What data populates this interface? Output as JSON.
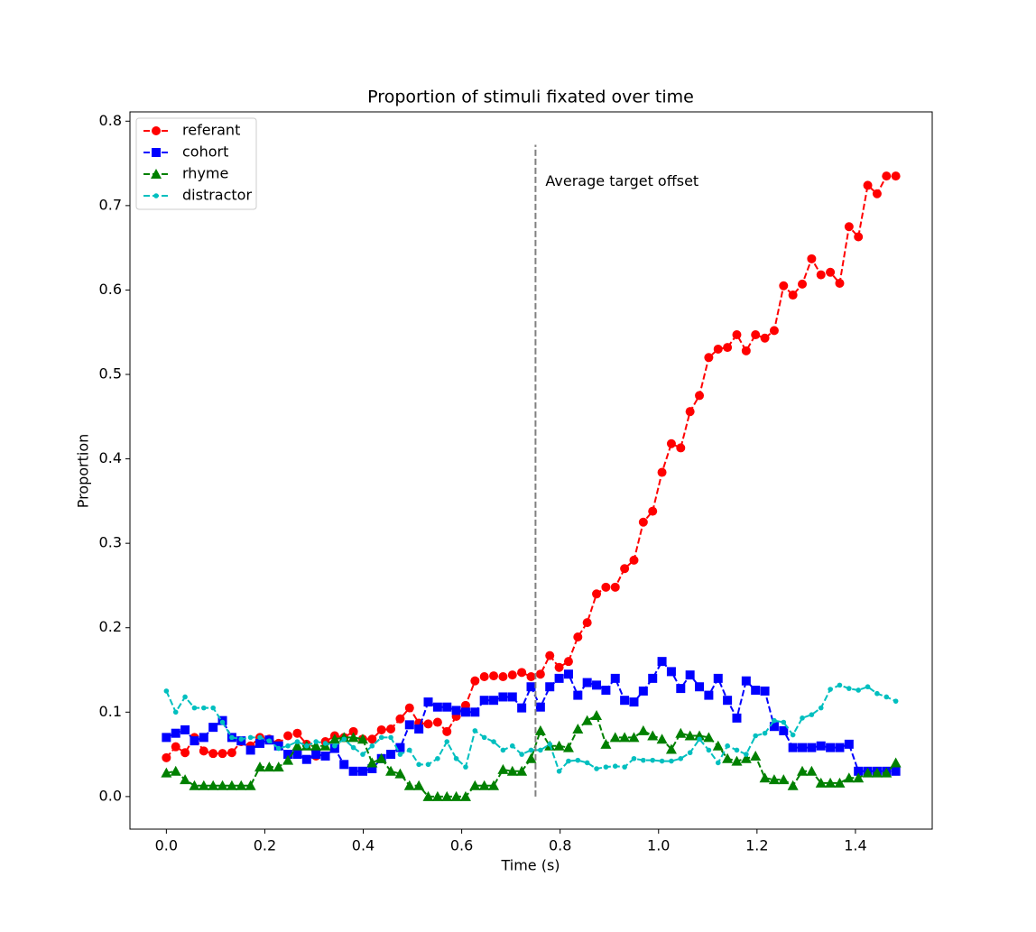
{
  "chart_data": {
    "type": "line",
    "title": "Proportion of stimuli fixated over time",
    "xlabel": "Time (s)",
    "ylabel": "Proportion",
    "x": [
      0,
      0.019,
      0.038,
      0.057,
      0.076,
      0.095,
      0.114,
      0.133,
      0.152,
      0.171,
      0.19,
      0.209,
      0.228,
      0.247,
      0.266,
      0.285,
      0.304,
      0.323,
      0.342,
      0.361,
      0.38,
      0.399,
      0.418,
      0.437,
      0.456,
      0.475,
      0.494,
      0.513,
      0.532,
      0.551,
      0.57,
      0.589,
      0.608,
      0.627,
      0.646,
      0.665,
      0.684,
      0.703,
      0.722,
      0.741,
      0.76,
      0.779,
      0.798,
      0.817,
      0.836,
      0.855,
      0.874,
      0.893,
      0.912,
      0.931,
      0.95,
      0.969,
      0.988,
      1.007,
      1.026,
      1.045,
      1.064,
      1.083,
      1.102,
      1.121,
      1.14,
      1.159,
      1.178,
      1.197,
      1.216,
      1.235,
      1.254,
      1.273,
      1.292,
      1.311,
      1.33,
      1.349,
      1.368,
      1.387,
      1.406,
      1.425,
      1.444,
      1.463,
      1.482
    ],
    "series": [
      {
        "name": "referant",
        "color": "#ff0000",
        "marker": "circle",
        "values": [
          0.046,
          0.059,
          0.052,
          0.07,
          0.054,
          0.051,
          0.051,
          0.052,
          0.065,
          0.06,
          0.07,
          0.068,
          0.063,
          0.072,
          0.075,
          0.062,
          0.048,
          0.065,
          0.072,
          0.07,
          0.077,
          0.068,
          0.068,
          0.079,
          0.08,
          0.092,
          0.105,
          0.087,
          0.086,
          0.088,
          0.077,
          0.095,
          0.108,
          0.137,
          0.142,
          0.143,
          0.142,
          0.144,
          0.147,
          0.142,
          0.145,
          0.167,
          0.153,
          0.16,
          0.189,
          0.206,
          0.24,
          0.248,
          0.248,
          0.27,
          0.28,
          0.325,
          0.338,
          0.384,
          0.418,
          0.413,
          0.456,
          0.475,
          0.52,
          0.53,
          0.532,
          0.547,
          0.528,
          0.547,
          0.543,
          0.552,
          0.605,
          0.594,
          0.607,
          0.637,
          0.618,
          0.621,
          0.608,
          0.675,
          0.663,
          0.724,
          0.714,
          0.735,
          0.735
        ]
      },
      {
        "name": "cohort",
        "color": "#0000ff",
        "marker": "square",
        "values": [
          0.07,
          0.075,
          0.079,
          0.066,
          0.07,
          0.082,
          0.09,
          0.07,
          0.066,
          0.055,
          0.063,
          0.067,
          0.06,
          0.05,
          0.05,
          0.044,
          0.05,
          0.048,
          0.057,
          0.038,
          0.03,
          0.03,
          0.033,
          0.045,
          0.05,
          0.058,
          0.085,
          0.08,
          0.112,
          0.106,
          0.106,
          0.102,
          0.1,
          0.1,
          0.114,
          0.114,
          0.118,
          0.118,
          0.105,
          0.13,
          0.106,
          0.13,
          0.14,
          0.145,
          0.12,
          0.135,
          0.132,
          0.126,
          0.14,
          0.114,
          0.112,
          0.125,
          0.14,
          0.16,
          0.148,
          0.128,
          0.144,
          0.13,
          0.12,
          0.14,
          0.114,
          0.093,
          0.137,
          0.126,
          0.125,
          0.083,
          0.078,
          0.058,
          0.058,
          0.058,
          0.06,
          0.058,
          0.058,
          0.062,
          0.03,
          0.03,
          0.03,
          0.03,
          0.03
        ]
      },
      {
        "name": "rhyme",
        "color": "#008000",
        "marker": "triangle",
        "values": [
          0.028,
          0.03,
          0.02,
          0.013,
          0.013,
          0.013,
          0.013,
          0.013,
          0.013,
          0.013,
          0.035,
          0.035,
          0.035,
          0.043,
          0.06,
          0.06,
          0.06,
          0.06,
          0.068,
          0.07,
          0.07,
          0.068,
          0.04,
          0.045,
          0.03,
          0.027,
          0.013,
          0.013,
          0,
          0,
          0,
          0,
          0,
          0.013,
          0.013,
          0.013,
          0.032,
          0.03,
          0.03,
          0.045,
          0.078,
          0.06,
          0.06,
          0.058,
          0.08,
          0.09,
          0.096,
          0.062,
          0.07,
          0.07,
          0.07,
          0.078,
          0.072,
          0.068,
          0.056,
          0.075,
          0.072,
          0.072,
          0.07,
          0.06,
          0.045,
          0.042,
          0.045,
          0.048,
          0.022,
          0.02,
          0.02,
          0.013,
          0.03,
          0.03,
          0.016,
          0.016,
          0.016,
          0.022,
          0.022,
          0.028,
          0.028,
          0.028,
          0.04
        ]
      },
      {
        "name": "distractor",
        "color": "#00bfbf",
        "marker": "dot",
        "values": [
          0.125,
          0.1,
          0.118,
          0.105,
          0.105,
          0.105,
          0.088,
          0.07,
          0.068,
          0.07,
          0.07,
          0.066,
          0.057,
          0.06,
          0.065,
          0.06,
          0.065,
          0.063,
          0.06,
          0.068,
          0.058,
          0.05,
          0.06,
          0.07,
          0.07,
          0.05,
          0.055,
          0.038,
          0.038,
          0.045,
          0.065,
          0.045,
          0.035,
          0.078,
          0.07,
          0.065,
          0.055,
          0.06,
          0.05,
          0.055,
          0.055,
          0.062,
          0.03,
          0.042,
          0.043,
          0.04,
          0.033,
          0.035,
          0.036,
          0.035,
          0.045,
          0.043,
          0.043,
          0.042,
          0.042,
          0.045,
          0.052,
          0.068,
          0.055,
          0.04,
          0.06,
          0.055,
          0.05,
          0.072,
          0.075,
          0.09,
          0.088,
          0.073,
          0.093,
          0.097,
          0.105,
          0.127,
          0.132,
          0.128,
          0.126,
          0.13,
          0.122,
          0.118,
          0.113
        ]
      }
    ],
    "vline": {
      "x": 0.75,
      "ymin": 0,
      "ymax": 0.772,
      "color": "#808080",
      "label": "Average target offset"
    },
    "xlim": [
      -0.074,
      1.556
    ],
    "ylim": [
      -0.0386,
      0.811
    ],
    "xticks": [
      {
        "value": 0,
        "label": "0.0"
      },
      0.2,
      0.4,
      0.6,
      0.8,
      {
        "value": 1,
        "label": "1.0"
      },
      1.2,
      1.4
    ],
    "yticks": [
      {
        "value": 0,
        "label": "0.0"
      },
      0.1,
      0.2,
      0.3,
      0.4,
      0.5,
      0.6,
      0.7,
      0.8
    ],
    "legend": "upper left",
    "grid": false
  }
}
